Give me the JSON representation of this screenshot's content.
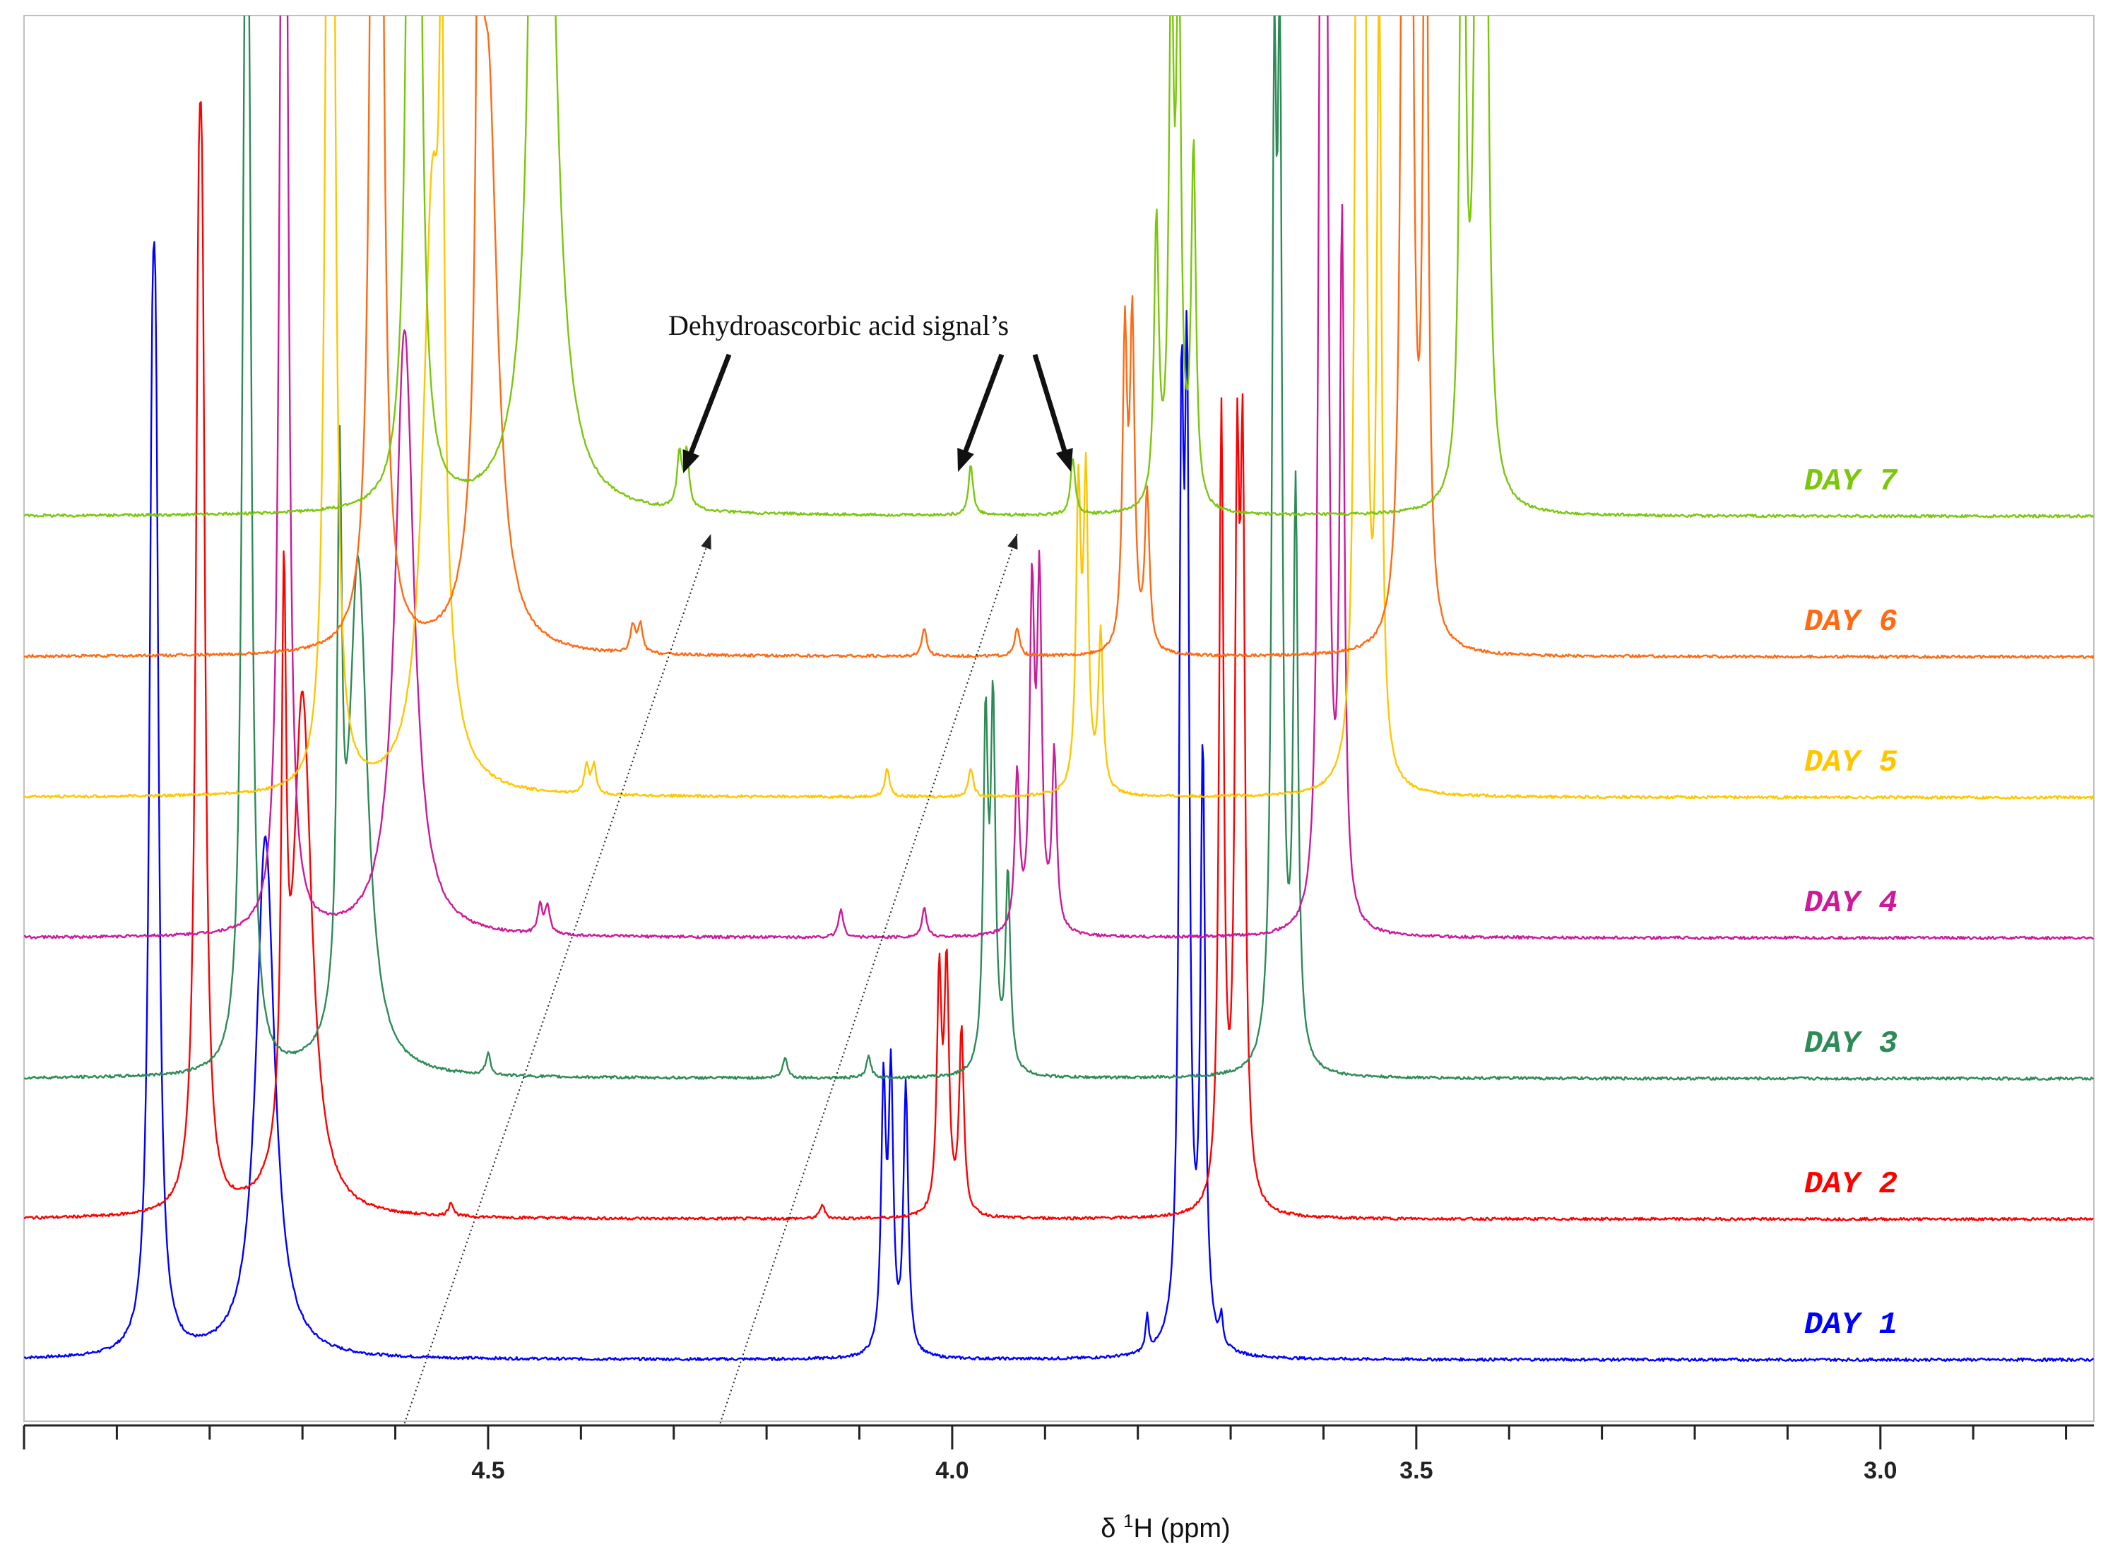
{
  "chart_data": {
    "type": "line",
    "title": "",
    "annotation": "Dehydroascorbic acid signal’s",
    "xlabel_prefix": "δ ",
    "xlabel_sup": "1",
    "xlabel_suffix": "H (ppm)",
    "ylabel": "",
    "xlim": [
      5.0,
      2.77
    ],
    "x_reversed": true,
    "ticks": [
      {
        "value": 4.5,
        "label": "4.5"
      },
      {
        "value": 4.0,
        "label": "4.0"
      },
      {
        "value": 3.5,
        "label": "3.5"
      },
      {
        "value": 3.0,
        "label": "3.0"
      }
    ],
    "minor_tick_step": 0.1,
    "trend_lines": [
      {
        "from_ppm": 4.59,
        "to_ppm": 4.26,
        "note": "shift of left DHA signal from day 1 to day 7"
      },
      {
        "from_ppm": 4.25,
        "to_ppm": 3.93,
        "note": "shift of right DHA signals from day 1 to day 7"
      }
    ],
    "series": [
      {
        "name": "DAY 1",
        "color": "#0000ff",
        "offset": 0,
        "peaks": [
          {
            "ppm": 4.86,
            "h": 1.0,
            "w": 0.004,
            "split": 0.004
          },
          {
            "ppm": 4.74,
            "h": 0.74,
            "w": 0.012
          },
          {
            "ppm": 4.07,
            "h": 0.38,
            "w": 0.003,
            "split": 0.008
          },
          {
            "ppm": 4.05,
            "h": 0.38,
            "w": 0.003
          },
          {
            "ppm": 3.75,
            "h": 1.23,
            "w": 0.003,
            "split": 0.006
          },
          {
            "ppm": 3.73,
            "h": 0.83,
            "w": 0.003
          },
          {
            "ppm": 3.79,
            "h": 0.05,
            "w": 0.002
          },
          {
            "ppm": 3.71,
            "h": 0.04,
            "w": 0.002
          }
        ]
      },
      {
        "name": "DAY 2",
        "color": "#ff0000",
        "offset": 1,
        "peaks": [
          {
            "ppm": 4.81,
            "h": 1.0,
            "w": 0.004,
            "split": 0.004
          },
          {
            "ppm": 4.7,
            "h": 0.73,
            "w": 0.012
          },
          {
            "ppm": 4.72,
            "h": 0.76,
            "w": 0.003
          },
          {
            "ppm": 4.01,
            "h": 0.34,
            "w": 0.003,
            "split": 0.008
          },
          {
            "ppm": 3.99,
            "h": 0.26,
            "w": 0.003
          },
          {
            "ppm": 3.69,
            "h": 0.96,
            "w": 0.003,
            "split": 0.006
          },
          {
            "ppm": 3.71,
            "h": 1.12,
            "w": 0.003
          },
          {
            "ppm": 4.54,
            "h": 0.02,
            "w": 0.003
          },
          {
            "ppm": 4.14,
            "h": 0.02,
            "w": 0.003
          }
        ]
      },
      {
        "name": "DAY 3",
        "color": "#2e8b57",
        "offset": 2,
        "peaks": [
          {
            "ppm": 4.76,
            "h": 1.09,
            "w": 0.004,
            "split": 0.004
          },
          {
            "ppm": 4.64,
            "h": 0.72,
            "w": 0.012
          },
          {
            "ppm": 4.66,
            "h": 0.73,
            "w": 0.003
          },
          {
            "ppm": 3.96,
            "h": 0.5,
            "w": 0.003,
            "split": 0.008
          },
          {
            "ppm": 3.94,
            "h": 0.28,
            "w": 0.003
          },
          {
            "ppm": 3.65,
            "h": 1.29,
            "w": 0.003,
            "split": 0.006
          },
          {
            "ppm": 3.63,
            "h": 0.8,
            "w": 0.003
          },
          {
            "ppm": 4.5,
            "h": 0.03,
            "w": 0.003
          },
          {
            "ppm": 4.09,
            "h": 0.03,
            "w": 0.003
          },
          {
            "ppm": 4.18,
            "h": 0.03,
            "w": 0.003
          }
        ]
      },
      {
        "name": "DAY 4",
        "color": "#cc1a9a",
        "offset": 3,
        "peaks": [
          {
            "ppm": 4.72,
            "h": 1.17,
            "w": 0.004,
            "split": 0.004
          },
          {
            "ppm": 4.59,
            "h": 0.86,
            "w": 0.012
          },
          {
            "ppm": 3.91,
            "h": 0.48,
            "w": 0.003,
            "split": 0.008
          },
          {
            "ppm": 3.93,
            "h": 0.22,
            "w": 0.003
          },
          {
            "ppm": 3.89,
            "h": 0.25,
            "w": 0.003
          },
          {
            "ppm": 3.6,
            "h": 1.37,
            "w": 0.003,
            "split": 0.006
          },
          {
            "ppm": 3.58,
            "h": 0.98,
            "w": 0.003
          },
          {
            "ppm": 4.44,
            "h": 0.04,
            "w": 0.003,
            "split": 0.008
          },
          {
            "ppm": 4.12,
            "h": 0.04,
            "w": 0.003
          },
          {
            "ppm": 4.03,
            "h": 0.04,
            "w": 0.003
          }
        ]
      },
      {
        "name": "DAY 5",
        "color": "#ffc600",
        "offset": 4,
        "peaks": [
          {
            "ppm": 4.67,
            "h": 1.27,
            "w": 0.004,
            "split": 0.004
          },
          {
            "ppm": 4.56,
            "h": 0.84,
            "w": 0.012
          },
          {
            "ppm": 4.55,
            "h": 0.75,
            "w": 0.003
          },
          {
            "ppm": 3.86,
            "h": 0.43,
            "w": 0.003,
            "split": 0.008
          },
          {
            "ppm": 3.84,
            "h": 0.22,
            "w": 0.003
          },
          {
            "ppm": 3.56,
            "h": 1.7,
            "w": 0.003,
            "split": 0.006
          },
          {
            "ppm": 3.54,
            "h": 1.09,
            "w": 0.003
          },
          {
            "ppm": 4.39,
            "h": 0.04,
            "w": 0.003,
            "split": 0.008
          },
          {
            "ppm": 4.07,
            "h": 0.04,
            "w": 0.003
          },
          {
            "ppm": 3.98,
            "h": 0.04,
            "w": 0.003
          }
        ]
      },
      {
        "name": "DAY 6",
        "color": "#ff6a13",
        "offset": 5,
        "peaks": [
          {
            "ppm": 4.62,
            "h": 1.9,
            "w": 0.004,
            "split": 0.004
          },
          {
            "ppm": 4.5,
            "h": 0.8,
            "w": 0.012
          },
          {
            "ppm": 4.51,
            "h": 0.92,
            "w": 0.003
          },
          {
            "ppm": 3.81,
            "h": 0.45,
            "w": 0.003,
            "split": 0.008
          },
          {
            "ppm": 3.79,
            "h": 0.22,
            "w": 0.003
          },
          {
            "ppm": 3.51,
            "h": 1.9,
            "w": 0.003,
            "split": 0.006
          },
          {
            "ppm": 3.49,
            "h": 1.3,
            "w": 0.003
          },
          {
            "ppm": 4.34,
            "h": 0.04,
            "w": 0.003,
            "split": 0.008
          },
          {
            "ppm": 4.03,
            "h": 0.04,
            "w": 0.003
          },
          {
            "ppm": 3.93,
            "h": 0.04,
            "w": 0.003
          }
        ]
      },
      {
        "name": "DAY 7",
        "color": "#7ac70c",
        "offset": 6,
        "peaks": [
          {
            "ppm": 4.58,
            "h": 1.9,
            "w": 0.004,
            "split": 0.004
          },
          {
            "ppm": 4.44,
            "h": 1.45,
            "w": 0.012
          },
          {
            "ppm": 4.45,
            "h": 1.5,
            "w": 0.003
          },
          {
            "ppm": 3.76,
            "h": 0.75,
            "w": 0.003,
            "split": 0.008
          },
          {
            "ppm": 3.74,
            "h": 0.5,
            "w": 0.003
          },
          {
            "ppm": 3.78,
            "h": 0.4,
            "w": 0.003
          },
          {
            "ppm": 3.43,
            "h": 1.9,
            "w": 0.003,
            "split": 0.006
          },
          {
            "ppm": 3.45,
            "h": 1.3,
            "w": 0.003
          },
          {
            "ppm": 4.29,
            "h": 0.08,
            "w": 0.003,
            "split": 0.008
          },
          {
            "ppm": 3.98,
            "h": 0.07,
            "w": 0.003
          },
          {
            "ppm": 3.87,
            "h": 0.08,
            "w": 0.003
          }
        ]
      }
    ]
  }
}
